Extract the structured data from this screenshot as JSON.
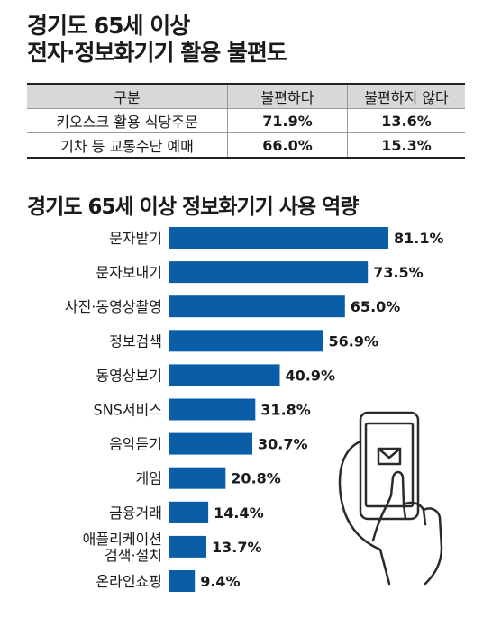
{
  "title1": {
    "line1": "경기도 65세 이상",
    "line2": "전자·정보화기기 활용 불편도"
  },
  "table": {
    "headers": [
      "구분",
      "불편하다",
      "불편하지 않다"
    ],
    "rows": [
      {
        "label": "키오스크 활용 식당주문",
        "inconvenient": "71.9%",
        "not_inconvenient": "13.6%"
      },
      {
        "label": "기차 등 교통수단 예매",
        "inconvenient": "66.0%",
        "not_inconvenient": "15.3%"
      }
    ]
  },
  "title2": "경기도 65세 이상 정보화기기 사용 역량",
  "chart_data": {
    "type": "bar",
    "orientation": "horizontal",
    "title": "경기도 65세 이상 정보화기기 사용 역량",
    "unit": "%",
    "color": "#0a5ea8",
    "categories": [
      [
        "문자받기"
      ],
      [
        "문자보내기"
      ],
      [
        "사진·동영상촬영"
      ],
      [
        "정보검색"
      ],
      [
        "동영상보기"
      ],
      [
        "SNS서비스"
      ],
      [
        "음악듣기"
      ],
      [
        "게임"
      ],
      [
        "금융거래"
      ],
      [
        "애플리케이션",
        "검색·설치"
      ],
      [
        "온라인쇼핑"
      ]
    ],
    "values": [
      81.1,
      73.5,
      65.0,
      56.9,
      40.9,
      31.8,
      30.7,
      20.8,
      14.4,
      13.7,
      9.4
    ],
    "value_labels": [
      "81.1%",
      "73.5%",
      "65.0%",
      "56.9%",
      "40.9%",
      "31.8%",
      "30.7%",
      "20.8%",
      "14.4%",
      "13.7%",
      "9.4%"
    ]
  }
}
